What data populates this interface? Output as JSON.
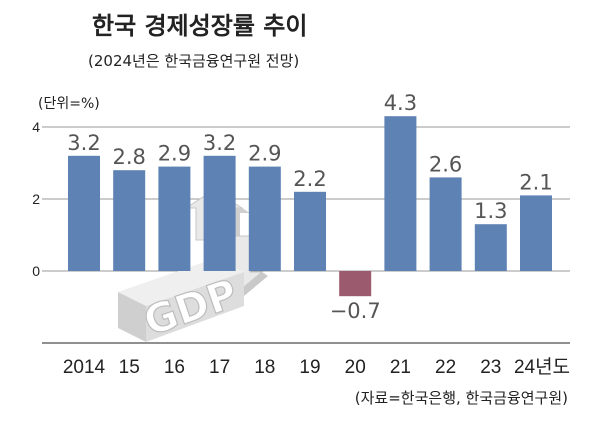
{
  "chart_data": {
    "type": "bar",
    "title": "한국 경제성장률 추이",
    "subtitle": "(2024년은 한국금융연구원 전망)",
    "unit_label": "(단위=%)",
    "source": "(자료=한국은행, 한국금융연구원)",
    "categories": [
      "2014",
      "15",
      "16",
      "17",
      "18",
      "19",
      "20",
      "21",
      "22",
      "23",
      "24년도"
    ],
    "values": [
      3.2,
      2.8,
      2.9,
      3.2,
      2.9,
      2.2,
      -0.7,
      4.3,
      2.6,
      1.3,
      2.1
    ],
    "value_labels": [
      "3.2",
      "2.8",
      "2.9",
      "3.2",
      "2.9",
      "2.2",
      "−0.7",
      "4.3",
      "2.6",
      "1.3",
      "2.1"
    ],
    "y_ticks": [
      0,
      2,
      4
    ],
    "y_tick_labels": [
      "0",
      "2",
      "4"
    ],
    "ylim": [
      -1,
      4
    ],
    "grid": true,
    "illustration_text": "GDP",
    "colors": {
      "positive": "#5d82b3",
      "negative": "#9c5a6e",
      "grid": "#9a9a9a",
      "text": "#222222",
      "label": "#555555"
    }
  }
}
